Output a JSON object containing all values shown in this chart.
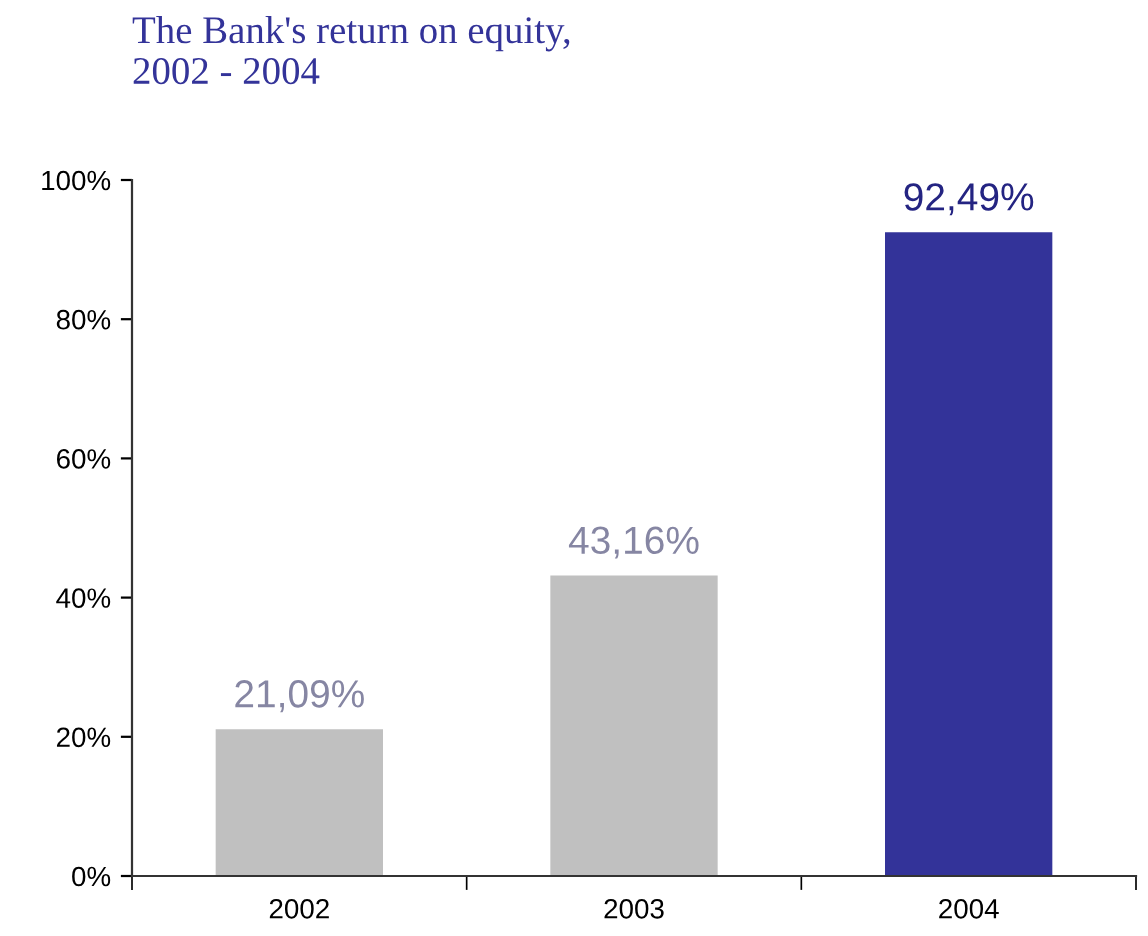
{
  "chart_data": {
    "type": "bar",
    "title": "The Bank's return on equity,\n2002 - 2004",
    "categories": [
      "2002",
      "2003",
      "2004"
    ],
    "values": [
      21.09,
      43.16,
      92.49
    ],
    "colors": [
      "#c0c0c0",
      "#c0c0c0",
      "#333399"
    ],
    "value_labels": [
      "21,09%",
      "43,16%",
      "92,49%"
    ],
    "ylim": [
      0,
      100
    ],
    "yticks": [
      {
        "value": 0,
        "label": "0%"
      },
      {
        "value": 20,
        "label": "20%"
      },
      {
        "value": 40,
        "label": "40%"
      },
      {
        "value": 60,
        "label": "60%"
      },
      {
        "value": 80,
        "label": "80%"
      },
      {
        "value": 100,
        "label": "100%"
      }
    ],
    "grid": false,
    "legend": false
  }
}
